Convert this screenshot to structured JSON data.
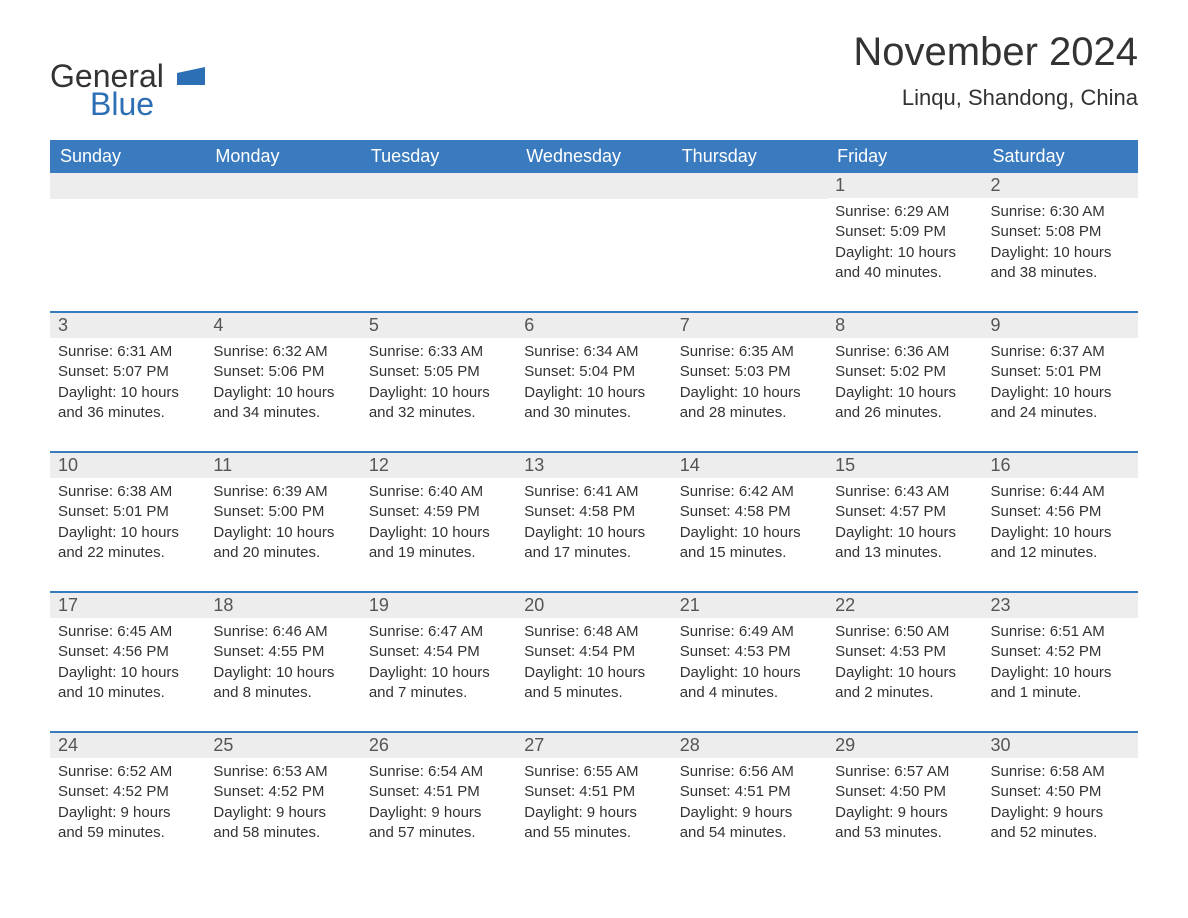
{
  "logo": {
    "text1": "General",
    "text2": "Blue",
    "shape_color": "#2d6fb5"
  },
  "title": "November 2024",
  "location": "Linqu, Shandong, China",
  "colors": {
    "header_bg": "#3a7bbf",
    "header_text": "#ffffff",
    "daynum_bg": "#ededed",
    "week_border": "#3a7bbf",
    "body_text": "#333333",
    "page_bg": "#ffffff"
  },
  "typography": {
    "title_fontsize": 40,
    "location_fontsize": 22,
    "weekday_fontsize": 18,
    "daynum_fontsize": 18,
    "content_fontsize": 15
  },
  "weekdays": [
    "Sunday",
    "Monday",
    "Tuesday",
    "Wednesday",
    "Thursday",
    "Friday",
    "Saturday"
  ],
  "weeks": [
    [
      {
        "empty": true
      },
      {
        "empty": true
      },
      {
        "empty": true
      },
      {
        "empty": true
      },
      {
        "empty": true
      },
      {
        "day": "1",
        "sunrise": "Sunrise: 6:29 AM",
        "sunset": "Sunset: 5:09 PM",
        "daylight1": "Daylight: 10 hours",
        "daylight2": "and 40 minutes."
      },
      {
        "day": "2",
        "sunrise": "Sunrise: 6:30 AM",
        "sunset": "Sunset: 5:08 PM",
        "daylight1": "Daylight: 10 hours",
        "daylight2": "and 38 minutes."
      }
    ],
    [
      {
        "day": "3",
        "sunrise": "Sunrise: 6:31 AM",
        "sunset": "Sunset: 5:07 PM",
        "daylight1": "Daylight: 10 hours",
        "daylight2": "and 36 minutes."
      },
      {
        "day": "4",
        "sunrise": "Sunrise: 6:32 AM",
        "sunset": "Sunset: 5:06 PM",
        "daylight1": "Daylight: 10 hours",
        "daylight2": "and 34 minutes."
      },
      {
        "day": "5",
        "sunrise": "Sunrise: 6:33 AM",
        "sunset": "Sunset: 5:05 PM",
        "daylight1": "Daylight: 10 hours",
        "daylight2": "and 32 minutes."
      },
      {
        "day": "6",
        "sunrise": "Sunrise: 6:34 AM",
        "sunset": "Sunset: 5:04 PM",
        "daylight1": "Daylight: 10 hours",
        "daylight2": "and 30 minutes."
      },
      {
        "day": "7",
        "sunrise": "Sunrise: 6:35 AM",
        "sunset": "Sunset: 5:03 PM",
        "daylight1": "Daylight: 10 hours",
        "daylight2": "and 28 minutes."
      },
      {
        "day": "8",
        "sunrise": "Sunrise: 6:36 AM",
        "sunset": "Sunset: 5:02 PM",
        "daylight1": "Daylight: 10 hours",
        "daylight2": "and 26 minutes."
      },
      {
        "day": "9",
        "sunrise": "Sunrise: 6:37 AM",
        "sunset": "Sunset: 5:01 PM",
        "daylight1": "Daylight: 10 hours",
        "daylight2": "and 24 minutes."
      }
    ],
    [
      {
        "day": "10",
        "sunrise": "Sunrise: 6:38 AM",
        "sunset": "Sunset: 5:01 PM",
        "daylight1": "Daylight: 10 hours",
        "daylight2": "and 22 minutes."
      },
      {
        "day": "11",
        "sunrise": "Sunrise: 6:39 AM",
        "sunset": "Sunset: 5:00 PM",
        "daylight1": "Daylight: 10 hours",
        "daylight2": "and 20 minutes."
      },
      {
        "day": "12",
        "sunrise": "Sunrise: 6:40 AM",
        "sunset": "Sunset: 4:59 PM",
        "daylight1": "Daylight: 10 hours",
        "daylight2": "and 19 minutes."
      },
      {
        "day": "13",
        "sunrise": "Sunrise: 6:41 AM",
        "sunset": "Sunset: 4:58 PM",
        "daylight1": "Daylight: 10 hours",
        "daylight2": "and 17 minutes."
      },
      {
        "day": "14",
        "sunrise": "Sunrise: 6:42 AM",
        "sunset": "Sunset: 4:58 PM",
        "daylight1": "Daylight: 10 hours",
        "daylight2": "and 15 minutes."
      },
      {
        "day": "15",
        "sunrise": "Sunrise: 6:43 AM",
        "sunset": "Sunset: 4:57 PM",
        "daylight1": "Daylight: 10 hours",
        "daylight2": "and 13 minutes."
      },
      {
        "day": "16",
        "sunrise": "Sunrise: 6:44 AM",
        "sunset": "Sunset: 4:56 PM",
        "daylight1": "Daylight: 10 hours",
        "daylight2": "and 12 minutes."
      }
    ],
    [
      {
        "day": "17",
        "sunrise": "Sunrise: 6:45 AM",
        "sunset": "Sunset: 4:56 PM",
        "daylight1": "Daylight: 10 hours",
        "daylight2": "and 10 minutes."
      },
      {
        "day": "18",
        "sunrise": "Sunrise: 6:46 AM",
        "sunset": "Sunset: 4:55 PM",
        "daylight1": "Daylight: 10 hours",
        "daylight2": "and 8 minutes."
      },
      {
        "day": "19",
        "sunrise": "Sunrise: 6:47 AM",
        "sunset": "Sunset: 4:54 PM",
        "daylight1": "Daylight: 10 hours",
        "daylight2": "and 7 minutes."
      },
      {
        "day": "20",
        "sunrise": "Sunrise: 6:48 AM",
        "sunset": "Sunset: 4:54 PM",
        "daylight1": "Daylight: 10 hours",
        "daylight2": "and 5 minutes."
      },
      {
        "day": "21",
        "sunrise": "Sunrise: 6:49 AM",
        "sunset": "Sunset: 4:53 PM",
        "daylight1": "Daylight: 10 hours",
        "daylight2": "and 4 minutes."
      },
      {
        "day": "22",
        "sunrise": "Sunrise: 6:50 AM",
        "sunset": "Sunset: 4:53 PM",
        "daylight1": "Daylight: 10 hours",
        "daylight2": "and 2 minutes."
      },
      {
        "day": "23",
        "sunrise": "Sunrise: 6:51 AM",
        "sunset": "Sunset: 4:52 PM",
        "daylight1": "Daylight: 10 hours",
        "daylight2": "and 1 minute."
      }
    ],
    [
      {
        "day": "24",
        "sunrise": "Sunrise: 6:52 AM",
        "sunset": "Sunset: 4:52 PM",
        "daylight1": "Daylight: 9 hours",
        "daylight2": "and 59 minutes."
      },
      {
        "day": "25",
        "sunrise": "Sunrise: 6:53 AM",
        "sunset": "Sunset: 4:52 PM",
        "daylight1": "Daylight: 9 hours",
        "daylight2": "and 58 minutes."
      },
      {
        "day": "26",
        "sunrise": "Sunrise: 6:54 AM",
        "sunset": "Sunset: 4:51 PM",
        "daylight1": "Daylight: 9 hours",
        "daylight2": "and 57 minutes."
      },
      {
        "day": "27",
        "sunrise": "Sunrise: 6:55 AM",
        "sunset": "Sunset: 4:51 PM",
        "daylight1": "Daylight: 9 hours",
        "daylight2": "and 55 minutes."
      },
      {
        "day": "28",
        "sunrise": "Sunrise: 6:56 AM",
        "sunset": "Sunset: 4:51 PM",
        "daylight1": "Daylight: 9 hours",
        "daylight2": "and 54 minutes."
      },
      {
        "day": "29",
        "sunrise": "Sunrise: 6:57 AM",
        "sunset": "Sunset: 4:50 PM",
        "daylight1": "Daylight: 9 hours",
        "daylight2": "and 53 minutes."
      },
      {
        "day": "30",
        "sunrise": "Sunrise: 6:58 AM",
        "sunset": "Sunset: 4:50 PM",
        "daylight1": "Daylight: 9 hours",
        "daylight2": "and 52 minutes."
      }
    ]
  ]
}
